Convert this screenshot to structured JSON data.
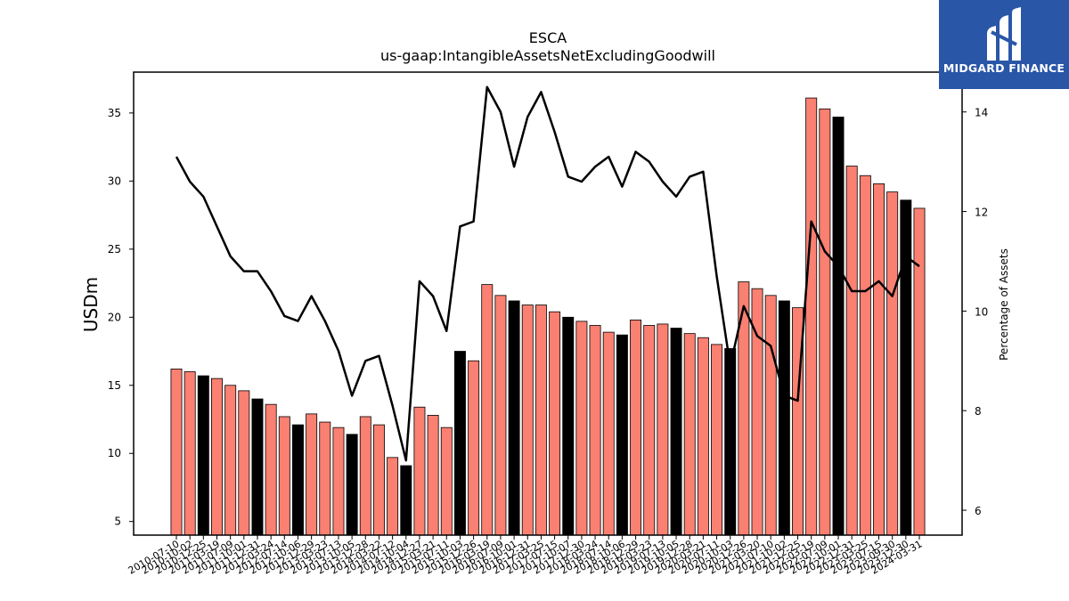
{
  "logo": {
    "text": "MIDGARD FINANCE",
    "icon": "midgard-logo-icon",
    "color": "#2a56a8"
  },
  "chart_data": {
    "type": "bar",
    "title": "ESCA",
    "subtitle": "us-gaap:IntangibleAssetsNetExcludingGoodwill",
    "ylabel": "USDm",
    "ylabel_right": "Percentage of Assets",
    "ylim": [
      4,
      38
    ],
    "ylim_right": [
      5.5,
      14.8
    ],
    "yticks": [
      5,
      10,
      15,
      20,
      25,
      30,
      35
    ],
    "yticks_right": [
      6,
      8,
      10,
      12,
      14
    ],
    "colors": {
      "bar": "#fa8072",
      "bar_alt": "#000000",
      "line": "#000000"
    },
    "grid": false,
    "categories": [
      "2010-07-10",
      "2010-10-02",
      "2010-12-25",
      "2011-03-19",
      "2011-07-09",
      "2011-10-01",
      "2011-12-31",
      "2012-03-24",
      "2012-07-14",
      "2012-10-06",
      "2012-12-29",
      "2013-03-23",
      "2013-07-13",
      "2013-10-05",
      "2013-12-28",
      "2014-03-22",
      "2014-07-12",
      "2014-10-04",
      "2014-12-27",
      "2015-03-21",
      "2015-07-11",
      "2015-10-03",
      "2015-12-26",
      "2016-03-19",
      "2016-07-09",
      "2016-10-01",
      "2016-12-31",
      "2017-03-25",
      "2017-07-15",
      "2017-10-07",
      "2017-12-30",
      "2018-03-24",
      "2018-07-14",
      "2018-10-06",
      "2018-12-29",
      "2019-03-23",
      "2019-07-13",
      "2019-10-05",
      "2019-12-28",
      "2020-03-21",
      "2020-07-11",
      "2020-10-03",
      "2020-12-26",
      "2021-03-20",
      "2021-07-10",
      "2021-10-02",
      "2021-12-25",
      "2022-03-19",
      "2022-07-09",
      "2022-10-01",
      "2022-12-31",
      "2023-03-25",
      "2023-07-15",
      "2023-09-30",
      "2023-12-30",
      "2024-03-31"
    ],
    "xticks_shown": [
      "2010-07-10",
      "2010-10-02",
      "2010-12-25",
      "2011-03-19",
      "2011-07-09",
      "2011-10-01",
      "2011-12-31",
      "2012-03-24",
      "2012-07-14",
      "2012-10-06",
      "2012-12-29",
      "2013-03-23",
      "2013-07-13",
      "2013-10-05",
      "2013-12-28",
      "2014-03-22",
      "2014-07-12",
      "2014-10-04",
      "2014-12-27",
      "2015-03-21",
      "2015-07-11",
      "2015-10-03",
      "2015-12-26",
      "2016-03-19",
      "2016-07-09",
      "2016-10-01",
      "2016-12-31",
      "2017-03-25",
      "2017-07-15",
      "2017-10-07",
      "2017-12-30",
      "2018-03-24",
      "2018-07-14",
      "2018-10-06",
      "2018-12-29",
      "2019-03-23",
      "2019-07-13",
      "2019-10-05",
      "2019-12-28",
      "2020-03-21",
      "2020-07-11",
      "2020-10-03",
      "2020-12-26",
      "2021-03-20",
      "2021-07-10",
      "2021-10-02",
      "2021-12-25",
      "2022-03-19",
      "2022-07-09",
      "2022-10-01",
      "2022-12-31",
      "2023-03-25",
      "2023-07-15",
      "2023-09-30",
      "2023-12-30",
      "2024-03-31"
    ],
    "series": [
      {
        "type": "bar",
        "values": [
          16.2,
          16.0,
          15.7,
          15.5,
          15.0,
          14.6,
          14.0,
          13.6,
          12.7,
          12.1,
          12.9,
          12.3,
          11.9,
          11.4,
          12.7,
          12.1,
          9.7,
          9.1,
          13.4,
          12.8,
          11.9,
          17.5,
          16.8,
          22.4,
          21.6,
          21.2,
          20.9,
          20.9,
          20.4,
          20.0,
          19.7,
          19.4,
          18.9,
          18.7,
          19.8,
          19.4,
          19.5,
          19.2,
          18.8,
          18.5,
          18.0,
          17.7,
          22.6,
          22.1,
          21.6,
          21.2,
          20.7,
          36.1,
          35.3,
          34.7,
          31.1,
          30.4,
          29.8,
          29.2,
          28.6,
          28.0
        ],
        "alt_color": [
          false,
          false,
          true,
          false,
          false,
          false,
          true,
          false,
          false,
          true,
          false,
          false,
          false,
          true,
          false,
          false,
          false,
          true,
          false,
          false,
          false,
          true,
          false,
          false,
          false,
          true,
          false,
          false,
          false,
          true,
          false,
          false,
          false,
          true,
          false,
          false,
          false,
          true,
          false,
          false,
          false,
          true,
          false,
          false,
          false,
          true,
          false,
          false,
          false,
          true,
          false,
          false,
          false,
          false,
          true,
          false
        ]
      },
      {
        "type": "line",
        "axis": "right",
        "values": [
          13.1,
          12.6,
          12.3,
          11.7,
          11.1,
          10.8,
          10.8,
          10.4,
          9.9,
          9.8,
          10.3,
          9.8,
          9.2,
          8.3,
          9.0,
          9.1,
          8.1,
          7.0,
          10.6,
          10.3,
          9.6,
          11.7,
          11.8,
          14.5,
          14.0,
          12.9,
          13.9,
          14.4,
          13.6,
          12.7,
          12.6,
          12.9,
          13.1,
          12.5,
          13.2,
          13.0,
          12.6,
          12.3,
          12.7,
          12.8,
          10.7,
          8.9,
          10.1,
          9.5,
          9.3,
          8.3,
          8.2,
          11.8,
          11.2,
          10.9,
          10.4,
          10.4,
          10.6,
          10.3,
          11.1,
          10.9
        ]
      }
    ]
  }
}
